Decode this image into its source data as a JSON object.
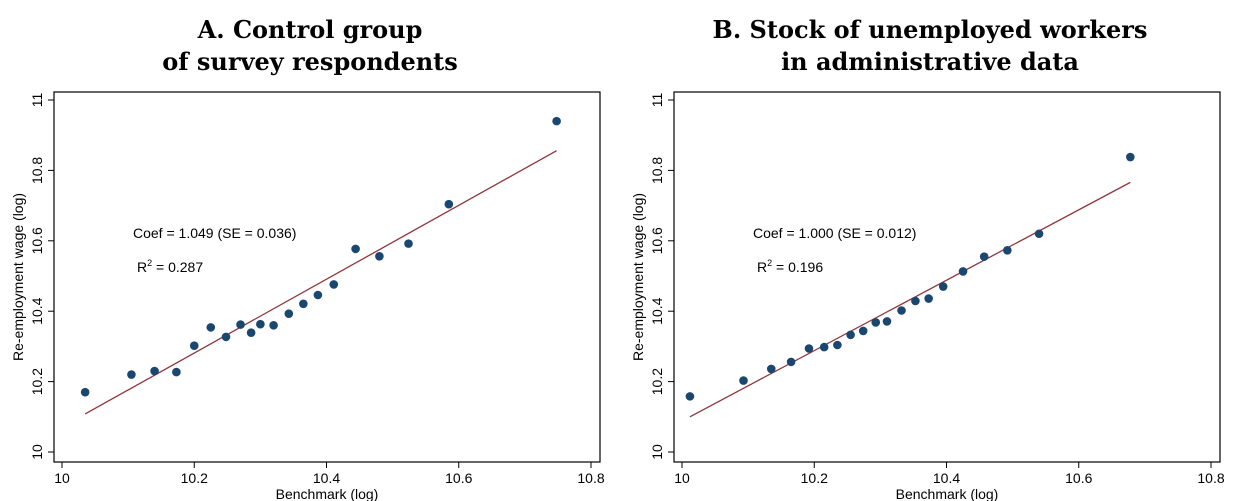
{
  "chart_data": [
    {
      "type": "scatter",
      "title_line1": "A. Control group",
      "title_line2": "of survey respondents",
      "xlabel": "Benchmark (log)",
      "ylabel": "Re-employment wage (log)",
      "xlim": [
        10,
        10.8
      ],
      "ylim": [
        10,
        11
      ],
      "xticks": [
        "10",
        "10.2",
        "10.4",
        "10.6",
        "10.8"
      ],
      "yticks": [
        "10",
        "10.2",
        "10.4",
        "10.6",
        "10.8",
        "11"
      ],
      "grid": false,
      "points": [
        [
          10.035,
          10.17
        ],
        [
          10.105,
          10.22
        ],
        [
          10.14,
          10.23
        ],
        [
          10.173,
          10.227
        ],
        [
          10.2,
          10.302
        ],
        [
          10.225,
          10.354
        ],
        [
          10.248,
          10.327
        ],
        [
          10.27,
          10.362
        ],
        [
          10.286,
          10.339
        ],
        [
          10.3,
          10.363
        ],
        [
          10.32,
          10.36
        ],
        [
          10.343,
          10.393
        ],
        [
          10.365,
          10.421
        ],
        [
          10.387,
          10.446
        ],
        [
          10.411,
          10.476
        ],
        [
          10.444,
          10.577
        ],
        [
          10.48,
          10.556
        ],
        [
          10.524,
          10.592
        ],
        [
          10.585,
          10.704
        ],
        [
          10.748,
          10.94
        ]
      ],
      "fit_line": {
        "x": [
          10.035,
          10.748
        ],
        "y": [
          10.108,
          10.856
        ]
      },
      "annotation_coef": "Coef = 1.049 (SE = 0.036)",
      "annotation_r2_prefix": "R",
      "annotation_r2_sup": "2",
      "annotation_r2_value": " = 0.287"
    },
    {
      "type": "scatter",
      "title_line1": "B. Stock of unemployed workers",
      "title_line2": "in administrative data",
      "xlabel": "Benchmark (log)",
      "ylabel": "Re-employment wage (log)",
      "xlim": [
        10,
        10.8
      ],
      "ylim": [
        10,
        11
      ],
      "xticks": [
        "10",
        "10.2",
        "10.4",
        "10.6",
        "10.8"
      ],
      "yticks": [
        "10",
        "10.2",
        "10.4",
        "10.6",
        "10.8",
        "11"
      ],
      "grid": false,
      "points": [
        [
          10.012,
          10.158
        ],
        [
          10.093,
          10.203
        ],
        [
          10.135,
          10.236
        ],
        [
          10.165,
          10.256
        ],
        [
          10.192,
          10.294
        ],
        [
          10.215,
          10.298
        ],
        [
          10.235,
          10.304
        ],
        [
          10.255,
          10.333
        ],
        [
          10.274,
          10.344
        ],
        [
          10.293,
          10.368
        ],
        [
          10.31,
          10.371
        ],
        [
          10.332,
          10.402
        ],
        [
          10.353,
          10.429
        ],
        [
          10.373,
          10.436
        ],
        [
          10.395,
          10.47
        ],
        [
          10.425,
          10.513
        ],
        [
          10.457,
          10.555
        ],
        [
          10.492,
          10.573
        ],
        [
          10.54,
          10.62
        ],
        [
          10.678,
          10.838
        ]
      ],
      "fit_line": {
        "x": [
          10.012,
          10.678
        ],
        "y": [
          10.1,
          10.766
        ]
      },
      "annotation_coef": "Coef = 1.000 (SE = 0.012)",
      "annotation_r2_prefix": "R",
      "annotation_r2_sup": "2",
      "annotation_r2_value": " = 0.196"
    }
  ],
  "colors": {
    "marker": "#1a476f",
    "fit_line": "#90353b",
    "axis": "#000000"
  }
}
